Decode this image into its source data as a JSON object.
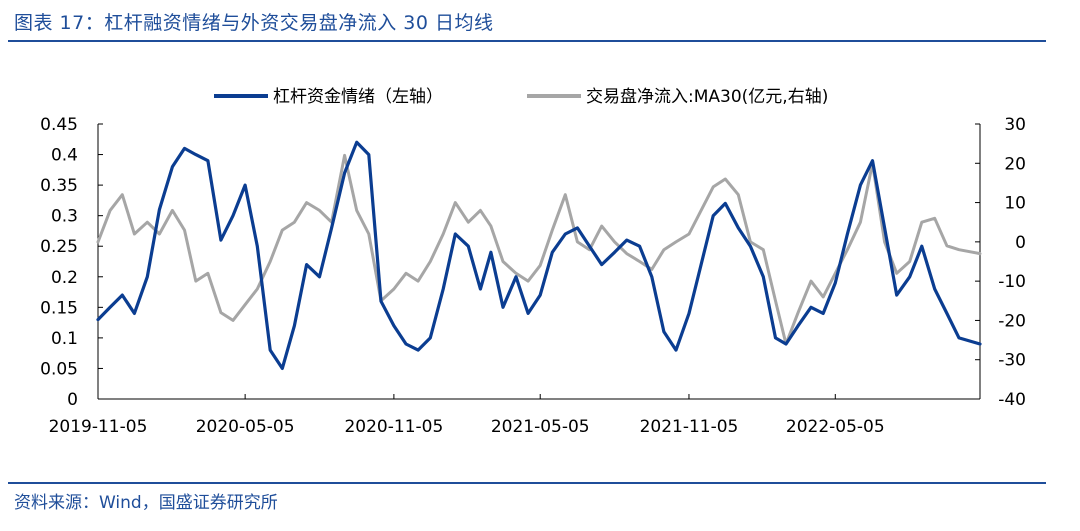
{
  "header": {
    "title": "图表 17：杠杆融资情绪与外资交易盘净流入 30 日均线"
  },
  "footer": {
    "source": "资料来源：Wind，国盛证券研究所"
  },
  "colors": {
    "accent": "#1F4E9A",
    "series_left": "#0B3D91",
    "series_right": "#A6A6A6"
  },
  "chart_data": {
    "type": "line",
    "title": "",
    "x_ticks": [
      "2019-11-05",
      "2020-05-05",
      "2020-11-05",
      "2021-05-05",
      "2021-11-05",
      "2022-05-05"
    ],
    "x_range": [
      "2019-11-05",
      "2022-10-31"
    ],
    "left_axis": {
      "label": "",
      "ylim": [
        0,
        0.45
      ],
      "ticks": [
        "0",
        "0.05",
        "0.1",
        "0.15",
        "0.2",
        "0.25",
        "0.3",
        "0.35",
        "0.4",
        "0.45"
      ]
    },
    "right_axis": {
      "label": "",
      "ylim": [
        -40,
        30
      ],
      "ticks": [
        "-40",
        "-30",
        "-20",
        "-10",
        "0",
        "10",
        "20",
        "30"
      ]
    },
    "legend_position": "top-center",
    "series": [
      {
        "name": "杠杆资金情绪（左轴）",
        "axis": "left",
        "color": "#0B3D91",
        "points": [
          [
            "2019-11-05",
            0.13
          ],
          [
            "2019-11-20",
            0.15
          ],
          [
            "2019-12-05",
            0.17
          ],
          [
            "2019-12-20",
            0.14
          ],
          [
            "2020-01-05",
            0.2
          ],
          [
            "2020-01-20",
            0.31
          ],
          [
            "2020-02-05",
            0.38
          ],
          [
            "2020-02-20",
            0.41
          ],
          [
            "2020-03-05",
            0.4
          ],
          [
            "2020-03-20",
            0.39
          ],
          [
            "2020-04-05",
            0.26
          ],
          [
            "2020-04-20",
            0.3
          ],
          [
            "2020-05-05",
            0.35
          ],
          [
            "2020-05-20",
            0.25
          ],
          [
            "2020-06-05",
            0.08
          ],
          [
            "2020-06-20",
            0.05
          ],
          [
            "2020-07-05",
            0.12
          ],
          [
            "2020-07-20",
            0.22
          ],
          [
            "2020-08-05",
            0.2
          ],
          [
            "2020-08-20",
            0.28
          ],
          [
            "2020-09-05",
            0.37
          ],
          [
            "2020-09-20",
            0.42
          ],
          [
            "2020-10-05",
            0.4
          ],
          [
            "2020-10-20",
            0.16
          ],
          [
            "2020-11-05",
            0.12
          ],
          [
            "2020-11-20",
            0.09
          ],
          [
            "2020-12-05",
            0.08
          ],
          [
            "2020-12-20",
            0.1
          ],
          [
            "2021-01-05",
            0.18
          ],
          [
            "2021-01-20",
            0.27
          ],
          [
            "2021-02-05",
            0.25
          ],
          [
            "2021-02-20",
            0.18
          ],
          [
            "2021-03-05",
            0.24
          ],
          [
            "2021-03-20",
            0.15
          ],
          [
            "2021-04-05",
            0.2
          ],
          [
            "2021-04-20",
            0.14
          ],
          [
            "2021-05-05",
            0.17
          ],
          [
            "2021-05-20",
            0.24
          ],
          [
            "2021-06-05",
            0.27
          ],
          [
            "2021-06-20",
            0.28
          ],
          [
            "2021-07-05",
            0.25
          ],
          [
            "2021-07-20",
            0.22
          ],
          [
            "2021-08-05",
            0.24
          ],
          [
            "2021-08-20",
            0.26
          ],
          [
            "2021-09-05",
            0.25
          ],
          [
            "2021-09-20",
            0.2
          ],
          [
            "2021-10-05",
            0.11
          ],
          [
            "2021-10-20",
            0.08
          ],
          [
            "2021-11-05",
            0.14
          ],
          [
            "2021-11-20",
            0.22
          ],
          [
            "2021-12-05",
            0.3
          ],
          [
            "2021-12-20",
            0.32
          ],
          [
            "2022-01-05",
            0.28
          ],
          [
            "2022-01-20",
            0.25
          ],
          [
            "2022-02-05",
            0.2
          ],
          [
            "2022-02-20",
            0.1
          ],
          [
            "2022-03-05",
            0.09
          ],
          [
            "2022-03-20",
            0.12
          ],
          [
            "2022-04-05",
            0.15
          ],
          [
            "2022-04-20",
            0.14
          ],
          [
            "2022-05-05",
            0.19
          ],
          [
            "2022-05-20",
            0.27
          ],
          [
            "2022-06-05",
            0.35
          ],
          [
            "2022-06-20",
            0.39
          ],
          [
            "2022-07-05",
            0.28
          ],
          [
            "2022-07-20",
            0.17
          ],
          [
            "2022-08-05",
            0.2
          ],
          [
            "2022-08-20",
            0.25
          ],
          [
            "2022-09-05",
            0.18
          ],
          [
            "2022-09-20",
            0.14
          ],
          [
            "2022-10-05",
            0.1
          ],
          [
            "2022-10-31",
            0.09
          ]
        ]
      },
      {
        "name": "交易盘净流入:MA30(亿元,右轴)",
        "axis": "right",
        "color": "#A6A6A6",
        "points": [
          [
            "2019-11-05",
            0
          ],
          [
            "2019-11-20",
            8
          ],
          [
            "2019-12-05",
            12
          ],
          [
            "2019-12-20",
            2
          ],
          [
            "2020-01-05",
            5
          ],
          [
            "2020-01-20",
            2
          ],
          [
            "2020-02-05",
            8
          ],
          [
            "2020-02-20",
            3
          ],
          [
            "2020-03-05",
            -10
          ],
          [
            "2020-03-20",
            -8
          ],
          [
            "2020-04-05",
            -18
          ],
          [
            "2020-04-20",
            -20
          ],
          [
            "2020-05-05",
            -16
          ],
          [
            "2020-05-20",
            -12
          ],
          [
            "2020-06-05",
            -5
          ],
          [
            "2020-06-20",
            3
          ],
          [
            "2020-07-05",
            5
          ],
          [
            "2020-07-20",
            10
          ],
          [
            "2020-08-05",
            8
          ],
          [
            "2020-08-20",
            5
          ],
          [
            "2020-09-05",
            22
          ],
          [
            "2020-09-20",
            8
          ],
          [
            "2020-10-05",
            2
          ],
          [
            "2020-10-20",
            -15
          ],
          [
            "2020-11-05",
            -12
          ],
          [
            "2020-11-20",
            -8
          ],
          [
            "2020-12-05",
            -10
          ],
          [
            "2020-12-20",
            -5
          ],
          [
            "2021-01-05",
            2
          ],
          [
            "2021-01-20",
            10
          ],
          [
            "2021-02-05",
            5
          ],
          [
            "2021-02-20",
            8
          ],
          [
            "2021-03-05",
            4
          ],
          [
            "2021-03-20",
            -5
          ],
          [
            "2021-04-05",
            -8
          ],
          [
            "2021-04-20",
            -10
          ],
          [
            "2021-05-05",
            -6
          ],
          [
            "2021-05-20",
            3
          ],
          [
            "2021-06-05",
            12
          ],
          [
            "2021-06-20",
            0
          ],
          [
            "2021-07-05",
            -2
          ],
          [
            "2021-07-20",
            4
          ],
          [
            "2021-08-05",
            0
          ],
          [
            "2021-08-20",
            -3
          ],
          [
            "2021-09-05",
            -5
          ],
          [
            "2021-09-20",
            -7
          ],
          [
            "2021-10-05",
            -2
          ],
          [
            "2021-10-20",
            0
          ],
          [
            "2021-11-05",
            2
          ],
          [
            "2021-11-20",
            8
          ],
          [
            "2021-12-05",
            14
          ],
          [
            "2021-12-20",
            16
          ],
          [
            "2022-01-05",
            12
          ],
          [
            "2022-01-20",
            0
          ],
          [
            "2022-02-05",
            -2
          ],
          [
            "2022-02-20",
            -15
          ],
          [
            "2022-03-05",
            -26
          ],
          [
            "2022-03-20",
            -18
          ],
          [
            "2022-04-05",
            -10
          ],
          [
            "2022-04-20",
            -14
          ],
          [
            "2022-05-05",
            -8
          ],
          [
            "2022-05-20",
            -2
          ],
          [
            "2022-06-05",
            5
          ],
          [
            "2022-06-20",
            20
          ],
          [
            "2022-07-05",
            0
          ],
          [
            "2022-07-20",
            -8
          ],
          [
            "2022-08-05",
            -5
          ],
          [
            "2022-08-20",
            5
          ],
          [
            "2022-09-05",
            6
          ],
          [
            "2022-09-20",
            -1
          ],
          [
            "2022-10-05",
            -2
          ],
          [
            "2022-10-31",
            -3
          ]
        ]
      }
    ]
  }
}
